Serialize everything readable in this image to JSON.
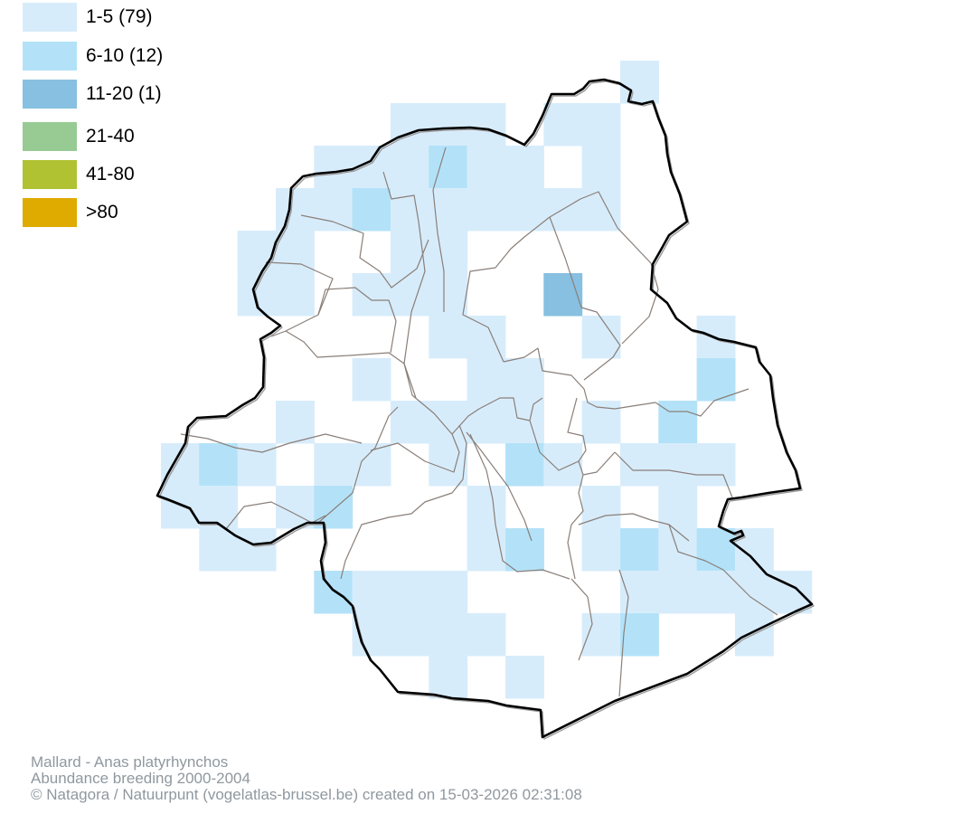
{
  "legend": [
    {
      "label": "1-5 (79)",
      "color": "#d7ecfb"
    },
    {
      "label": "6-10 (12)",
      "color": "#b3e2f8"
    },
    {
      "label": "11-20 (1)",
      "color": "#87c0e0"
    },
    {
      "label": "21-40",
      "color": "#97cb93"
    },
    {
      "label": "41-80",
      "color": "#b0c232"
    },
    {
      "label": ">80",
      "color": "#e0ab00"
    }
  ],
  "caption": {
    "line1": "Mallard - Anas platyrhynchos",
    "line2": "Abundance breeding 2000-2004",
    "line3": "© Natagora / Natuurpunt (vogelatlas-brussel.be) created on 15-03-2026 02:31:08"
  }
}
